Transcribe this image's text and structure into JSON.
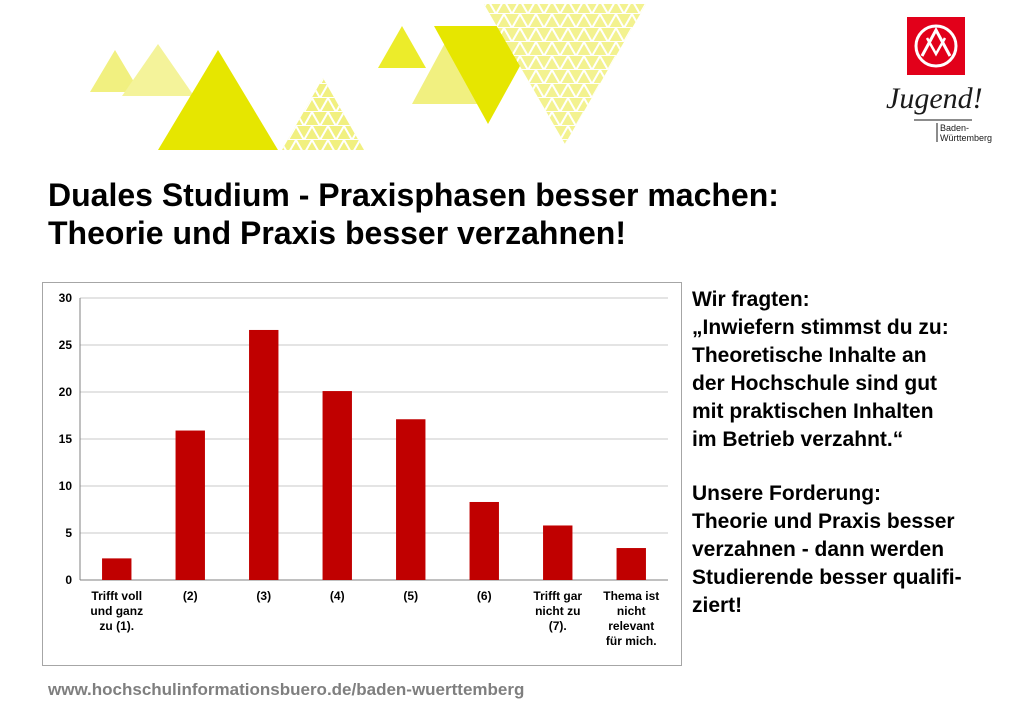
{
  "header": {
    "title_line1": "Duales Studium - Praxisphasen besser machen:",
    "title_line2": "Theorie und Praxis besser verzahnen!"
  },
  "logo": {
    "emblem_icon": "ig-metall-emblem-icon",
    "wordmark": "Jugend!",
    "region_line1": "Baden-",
    "region_line2": "Württemberg",
    "color": "#e2001a"
  },
  "chart_data": {
    "type": "bar",
    "categories": [
      "Trifft voll und ganz zu (1).",
      "(2)",
      "(3)",
      "(4)",
      "(5)",
      "(6)",
      "Trifft gar nicht zu (7).",
      "Thema ist nicht relevant für mich."
    ],
    "category_lines": [
      [
        "Trifft voll",
        "und ganz",
        "zu (1)."
      ],
      [
        "(2)"
      ],
      [
        "(3)"
      ],
      [
        "(4)"
      ],
      [
        "(5)"
      ],
      [
        "(6)"
      ],
      [
        "Trifft gar",
        "nicht zu",
        "(7)."
      ],
      [
        "Thema ist",
        "nicht",
        "relevant",
        "für mich."
      ]
    ],
    "values": [
      2.3,
      15.9,
      26.6,
      20.1,
      17.1,
      8.3,
      5.8,
      3.4
    ],
    "yticks": [
      0,
      5,
      10,
      15,
      20,
      25,
      30
    ],
    "ylim": [
      0,
      30
    ],
    "grid": true,
    "bar_color": "#c00000"
  },
  "side": {
    "question_intro": "Wir fragten:",
    "question_lines": [
      "„Inwiefern stimmst du zu:",
      "Theoretische Inhalte an",
      "der Hochschule sind gut",
      "mit praktischen Inhalten",
      "im Betrieb verzahnt.“"
    ],
    "demand_intro": "Unsere Forderung:",
    "demand_lines": [
      "Theorie und Praxis besser",
      "verzahnen - dann werden",
      "Studierende besser qualifi-",
      "ziert!"
    ]
  },
  "footer": {
    "url": "www.hochschulinformationsbuero.de/baden-wuerttemberg"
  },
  "decoration": {
    "shape_icon": "yellow-triangles-decoration-icon",
    "colors": [
      "#e6e600",
      "#f1f080",
      "#f5f5a8"
    ]
  }
}
